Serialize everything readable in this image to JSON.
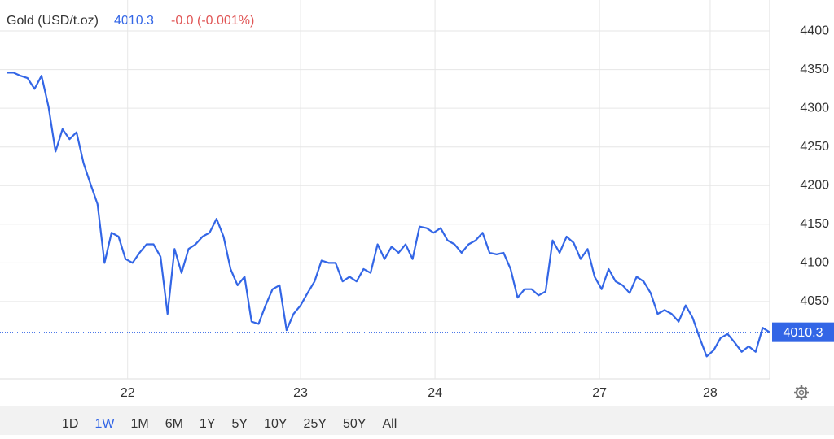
{
  "chart_data": {
    "type": "line",
    "title": "Gold (USD/t.oz)",
    "price": 4010.3,
    "change": "-0.0 (-0.001%)",
    "series": [
      {
        "name": "Gold",
        "color": "#3366e6",
        "values": [
          4346,
          4346,
          4342,
          4339,
          4325,
          4342,
          4302,
          4244,
          4273,
          4260,
          4269,
          4229,
          4202,
          4176,
          4100,
          4139,
          4134,
          4105,
          4100,
          4113,
          4124,
          4124,
          4108,
          4034,
          4118,
          4087,
          4118,
          4124,
          4134,
          4139,
          4157,
          4134,
          4092,
          4071,
          4082,
          4024,
          4021,
          4045,
          4066,
          4071,
          4013,
          4034,
          4045,
          4061,
          4076,
          4103,
          4100,
          4100,
          4076,
          4082,
          4076,
          4092,
          4087,
          4124,
          4105,
          4121,
          4113,
          4124,
          4105,
          4147,
          4145,
          4139,
          4145,
          4129,
          4124,
          4113,
          4124,
          4129,
          4139,
          4113,
          4111,
          4113,
          4092,
          4055,
          4066,
          4066,
          4058,
          4063,
          4129,
          4113,
          4134,
          4126,
          4105,
          4118,
          4082,
          4066,
          4092,
          4076,
          4071,
          4061,
          4082,
          4076,
          4061,
          4034,
          4039,
          4034,
          4024,
          4045,
          4029,
          4003,
          3979,
          3987,
          4003,
          4008,
          3997,
          3985,
          3992,
          3985,
          4016,
          4010.3
        ]
      }
    ],
    "xlim": [
      0,
      109
    ],
    "xticks": [
      {
        "value": 17.3,
        "label": "22"
      },
      {
        "value": 42,
        "label": "23"
      },
      {
        "value": 61.2,
        "label": "24"
      },
      {
        "value": 84.7,
        "label": "27"
      },
      {
        "value": 100.5,
        "label": "28"
      }
    ],
    "ylim": [
      3950,
      4440
    ],
    "yticks": [
      4050,
      4100,
      4150,
      4200,
      4250,
      4300,
      4350,
      4400
    ],
    "grid": true,
    "ranges": [
      "1D",
      "1W",
      "1M",
      "6M",
      "1Y",
      "5Y",
      "10Y",
      "25Y",
      "50Y",
      "All"
    ],
    "active_range": "1W"
  }
}
